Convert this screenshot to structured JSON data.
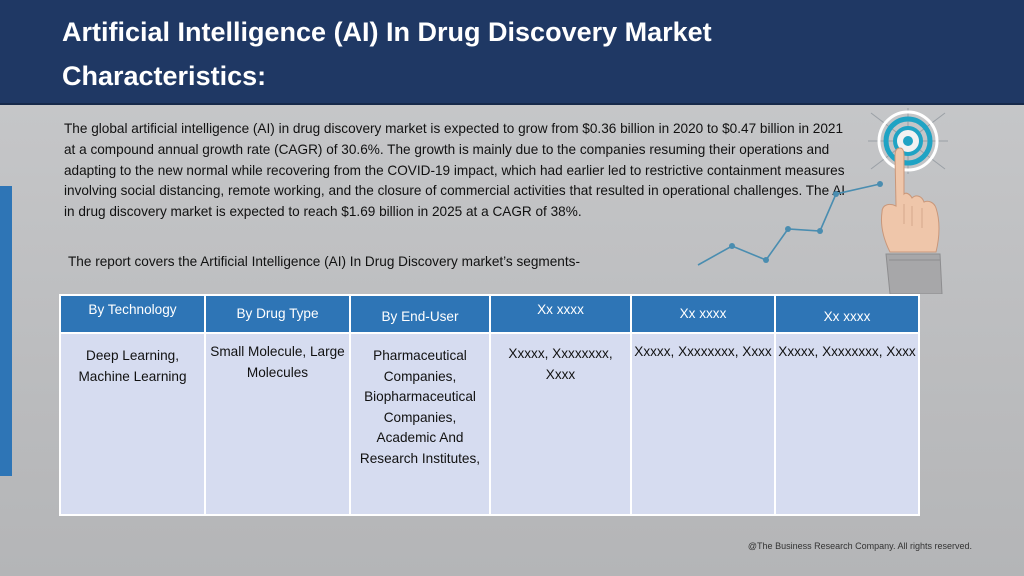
{
  "slide": {
    "title": "Artificial Intelligence (AI) In Drug Discovery Market Characteristics:",
    "intro": "The global artificial intelligence (AI) in drug discovery market is expected to grow from $0.36 billion in 2020 to $0.47 billion in 2021 at a compound annual growth rate (CAGR) of 30.6%. The growth is mainly due to the companies resuming their operations and adapting to the new normal while recovering from the COVID-19 impact, which had earlier led to restrictive containment measures involving social distancing, remote working, and the closure of commercial activities that resulted in operational challenges. The AI in drug discovery market is expected to reach $1.69 billion in 2025 at a CAGR of 38%.",
    "segments_line": "The report covers the Artificial Intelligence (AI) In Drug Discovery market’s segments-",
    "footer": "@The Business Research Company. All rights reserved."
  },
  "table": {
    "headers": [
      "By Technology",
      "By Drug Type",
      "By End-User",
      "Xx xxxx",
      "Xx xxxx",
      "Xx xxxx"
    ],
    "cells": [
      "Deep Learning, Machine Learning",
      "Small Molecule, Large Molecules",
      "Pharmaceutical Companies, Biopharmaceutical Companies, Academic And Research Institutes,",
      "Xxxxx, Xxxxxxxx, Xxxx",
      "Xxxxx, Xxxxxxxx, Xxxx",
      "Xxxxx, Xxxxxxxx, Xxxx"
    ]
  },
  "illustration": {
    "icon": "hand-touch-target-icon",
    "colors": {
      "target_ring": "#1fa3c4",
      "trend_line": "#4a8db0",
      "header": "#1f3864",
      "accent": "#2e75b6",
      "table_body": "#d6dcf0"
    }
  }
}
